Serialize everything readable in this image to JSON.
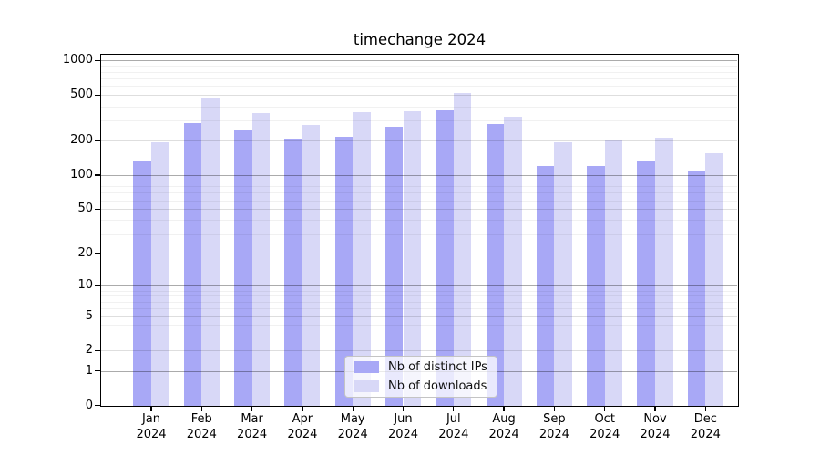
{
  "chart_data": {
    "type": "bar",
    "title": "timechange 2024",
    "categories": [
      "Jan 2024",
      "Feb 2024",
      "Mar 2024",
      "Apr 2024",
      "May 2024",
      "Jun 2024",
      "Jul 2024",
      "Aug 2024",
      "Sep 2024",
      "Oct 2024",
      "Nov 2024",
      "Dec 2024"
    ],
    "series": [
      {
        "name": "Nb of distinct IPs",
        "color": "#a8a8f6",
        "values": [
          133,
          286,
          248,
          207,
          216,
          266,
          371,
          281,
          120,
          120,
          135,
          110
        ]
      },
      {
        "name": "Nb of downloads",
        "color": "#d8d8f7",
        "values": [
          195,
          471,
          349,
          277,
          358,
          365,
          526,
          323,
          195,
          205,
          211,
          157
        ]
      }
    ],
    "yscale": "log1p",
    "ylim": [
      0,
      1150
    ],
    "yticks": [
      0,
      1,
      2,
      5,
      10,
      20,
      50,
      100,
      200,
      500,
      1000
    ],
    "grid": "major and minor horizontal gridlines, drawn over bars",
    "legend_position": "inside plot, bottom center"
  }
}
